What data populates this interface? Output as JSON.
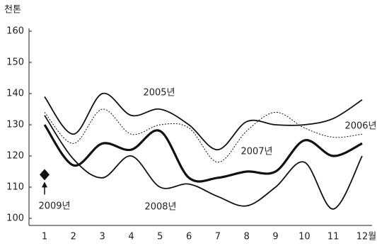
{
  "chart_data": {
    "type": "line",
    "y_unit": "천톤",
    "categories": [
      "1",
      "2",
      "3",
      "4",
      "5",
      "6",
      "7",
      "8",
      "9",
      "10",
      "11",
      "12월"
    ],
    "ylim": [
      100,
      160
    ],
    "yticks": [
      100,
      110,
      120,
      130,
      140,
      150,
      160
    ],
    "series": [
      {
        "name": "2005년",
        "color": "#111111",
        "style": "solid",
        "values": [
          139,
          127,
          140,
          133,
          135,
          130,
          122,
          131,
          130,
          130,
          132,
          138
        ]
      },
      {
        "name": "2006년",
        "color": "#111111",
        "style": "dotted",
        "values": [
          134,
          124,
          135,
          127,
          130,
          129,
          118,
          128,
          134,
          129,
          126,
          127
        ]
      },
      {
        "name": "2007년",
        "color": "#111111",
        "style": "thick",
        "values": [
          130,
          117,
          124,
          122,
          128,
          113,
          113,
          115,
          115,
          125,
          120,
          124
        ]
      },
      {
        "name": "2008년",
        "color": "#111111",
        "style": "solid",
        "values": [
          133,
          119,
          113,
          120,
          110,
          111,
          107,
          104,
          110,
          118,
          103,
          120
        ]
      },
      {
        "name": "2009년",
        "color": "#111111",
        "style": "marker",
        "values": [
          114,
          null,
          null,
          null,
          null,
          null,
          null,
          null,
          null,
          null,
          null,
          null
        ]
      }
    ]
  }
}
